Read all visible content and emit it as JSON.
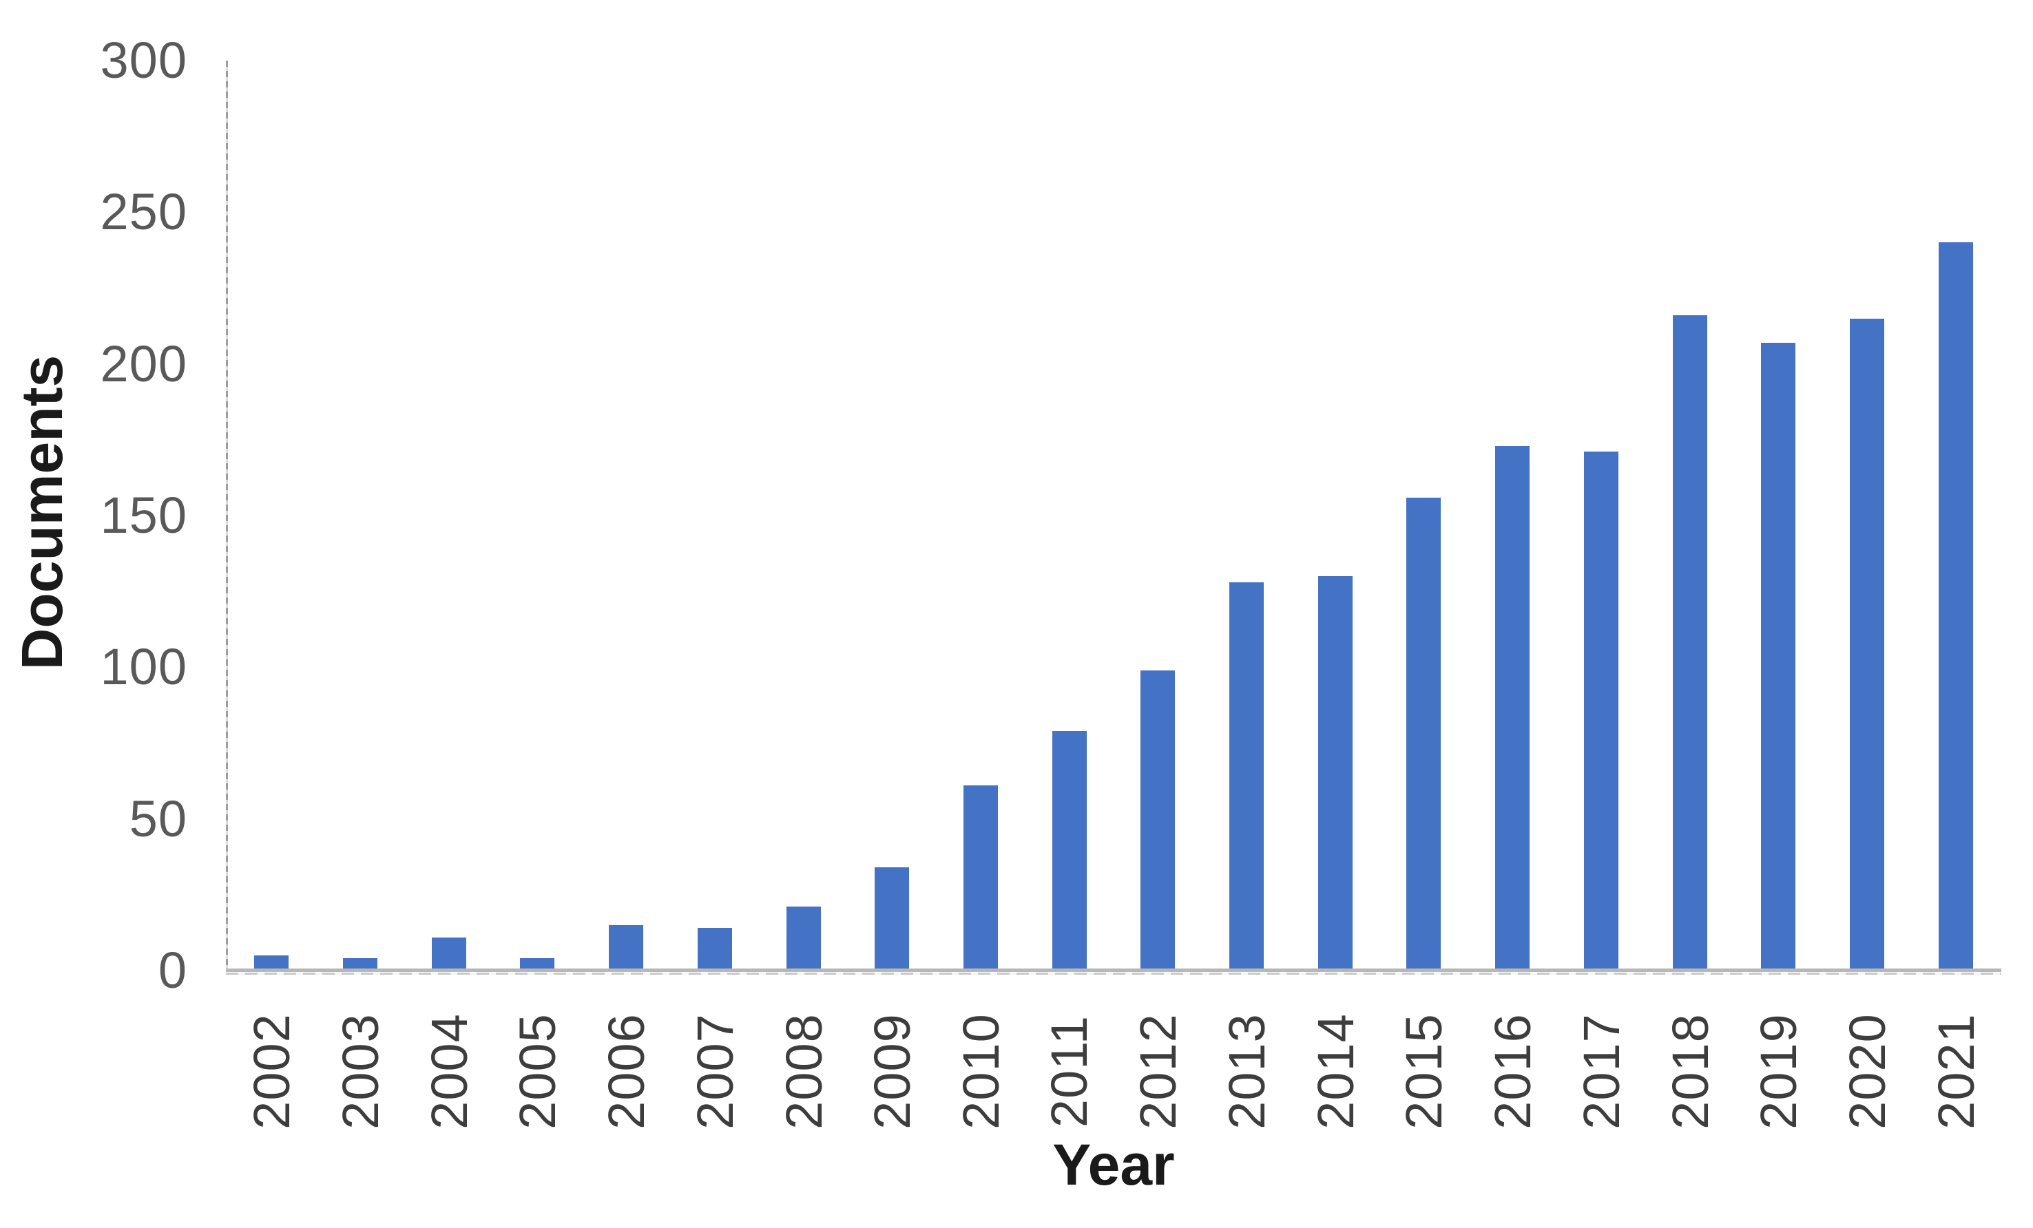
{
  "page": {
    "background": "#ffffff"
  },
  "chart_data": {
    "type": "bar",
    "title": "",
    "xlabel": "Year",
    "ylabel": "Documents",
    "categories": [
      "2002",
      "2003",
      "2004",
      "2005",
      "2006",
      "2007",
      "2008",
      "2009",
      "2010",
      "2011",
      "2012",
      "2013",
      "2014",
      "2015",
      "2016",
      "2017",
      "2018",
      "2019",
      "2020",
      "2021"
    ],
    "values": [
      5,
      4,
      11,
      4,
      15,
      14,
      21,
      34,
      61,
      79,
      99,
      128,
      130,
      156,
      173,
      171,
      216,
      207,
      215,
      240
    ],
    "ylim": [
      0,
      300
    ],
    "yticks": [
      0,
      50,
      100,
      150,
      200,
      250,
      300
    ],
    "grid": false,
    "legend": false,
    "bar_color": "#4472C4",
    "axis_line_color": "#B7B7B7",
    "tick_label_color": "#595959",
    "category_label_color": "#3D3D3D",
    "axis_title_color": "#1A1A1A"
  }
}
